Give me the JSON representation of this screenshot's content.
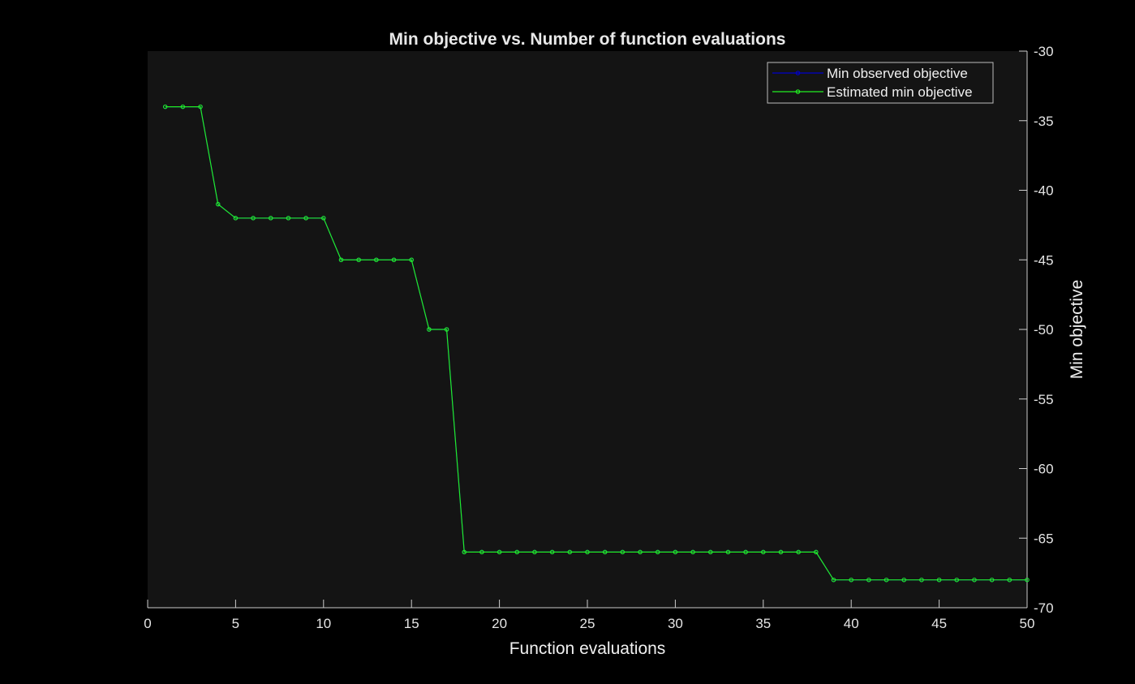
{
  "chart_data": {
    "type": "line",
    "title": "Min objective vs. Number of function evaluations",
    "xlabel": "Function evaluations",
    "ylabel": "Min objective",
    "xlim": [
      0,
      50
    ],
    "ylim": [
      -70,
      -30
    ],
    "xticks": [
      0,
      5,
      10,
      15,
      20,
      25,
      30,
      35,
      40,
      45,
      50
    ],
    "yticks": [
      -30,
      -35,
      -40,
      -45,
      -50,
      -55,
      -60,
      -65,
      -70
    ],
    "y_axis_side": "right",
    "grid": false,
    "legend_position": "top-right",
    "x": [
      1,
      2,
      3,
      4,
      5,
      6,
      7,
      8,
      9,
      10,
      11,
      12,
      13,
      14,
      15,
      16,
      17,
      18,
      19,
      20,
      21,
      22,
      23,
      24,
      25,
      26,
      27,
      28,
      29,
      30,
      31,
      32,
      33,
      34,
      35,
      36,
      37,
      38,
      39,
      40,
      41,
      42,
      43,
      44,
      45,
      46,
      47,
      48,
      49,
      50
    ],
    "series": [
      {
        "name": "Min observed objective",
        "color": "#0000cc",
        "values": [
          -34,
          -34,
          -34,
          -41,
          -42,
          -42,
          -42,
          -42,
          -42,
          -42,
          -45,
          -45,
          -45,
          -45,
          -45,
          -50,
          -50,
          -66,
          -66,
          -66,
          -66,
          -66,
          -66,
          -66,
          -66,
          -66,
          -66,
          -66,
          -66,
          -66,
          -66,
          -66,
          -66,
          -66,
          -66,
          -66,
          -66,
          -66,
          -68,
          -68,
          -68,
          -68,
          -68,
          -68,
          -68,
          -68,
          -68,
          -68,
          -68,
          -68
        ]
      },
      {
        "name": "Estimated min objective",
        "color": "#22ee22",
        "values": [
          -34,
          -34,
          -34,
          -41,
          -42,
          -42,
          -42,
          -42,
          -42,
          -42,
          -45,
          -45,
          -45,
          -45,
          -45,
          -50,
          -50,
          -66,
          -66,
          -66,
          -66,
          -66,
          -66,
          -66,
          -66,
          -66,
          -66,
          -66,
          -66,
          -66,
          -66,
          -66,
          -66,
          -66,
          -66,
          -66,
          -66,
          -66,
          -68,
          -68,
          -68,
          -68,
          -68,
          -68,
          -68,
          -68,
          -68,
          -68,
          -68,
          -68
        ]
      }
    ]
  },
  "colors": {
    "figure_background": "#000000",
    "axes_background": "#141414",
    "axis_color": "#cccccc"
  }
}
